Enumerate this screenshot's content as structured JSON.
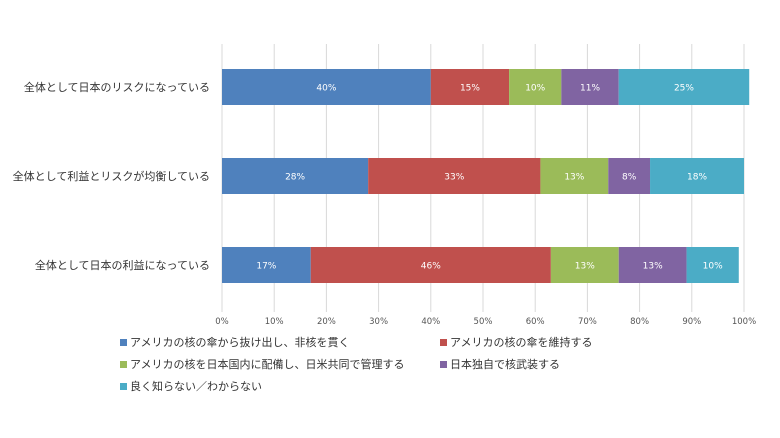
{
  "chart_data": {
    "type": "bar",
    "orientation": "horizontal",
    "stacked": true,
    "percent_stacked": true,
    "categories": [
      "全体として日本のリスクになっている",
      "全体として利益とリスクが均衡している",
      "全体として日本の利益になっている"
    ],
    "series": [
      {
        "name": "アメリカの核の傘から抜け出し、非核を貫く",
        "color": "#4f81bd",
        "values": [
          40,
          28,
          17
        ],
        "labels": [
          "40%",
          "28%",
          "17%"
        ]
      },
      {
        "name": "アメリカの核の傘を維持する",
        "color": "#c0504d",
        "values": [
          15,
          33,
          46
        ],
        "labels": [
          "15%",
          "33%",
          "46%"
        ]
      },
      {
        "name": "アメリカの核を日本国内に配備し、日米共同で管理する",
        "color": "#9bbb59",
        "values": [
          10,
          13,
          13
        ],
        "labels": [
          "10%",
          "13%",
          "13%"
        ]
      },
      {
        "name": "日本独自で核武装する",
        "color": "#8064a2",
        "values": [
          11,
          8,
          13
        ],
        "labels": [
          "11%",
          "8%",
          "13%"
        ]
      },
      {
        "name": "良く知らない／わからない",
        "color": "#4bacc6",
        "values": [
          25,
          18,
          10
        ],
        "labels": [
          "25%",
          "18%",
          "10%"
        ]
      }
    ],
    "xlim": [
      0,
      100
    ],
    "x_ticks": [
      "0%",
      "10%",
      "20%",
      "30%",
      "40%",
      "50%",
      "60%",
      "70%",
      "80%",
      "90%",
      "100%"
    ],
    "grid": true,
    "legend_position": "bottom"
  }
}
